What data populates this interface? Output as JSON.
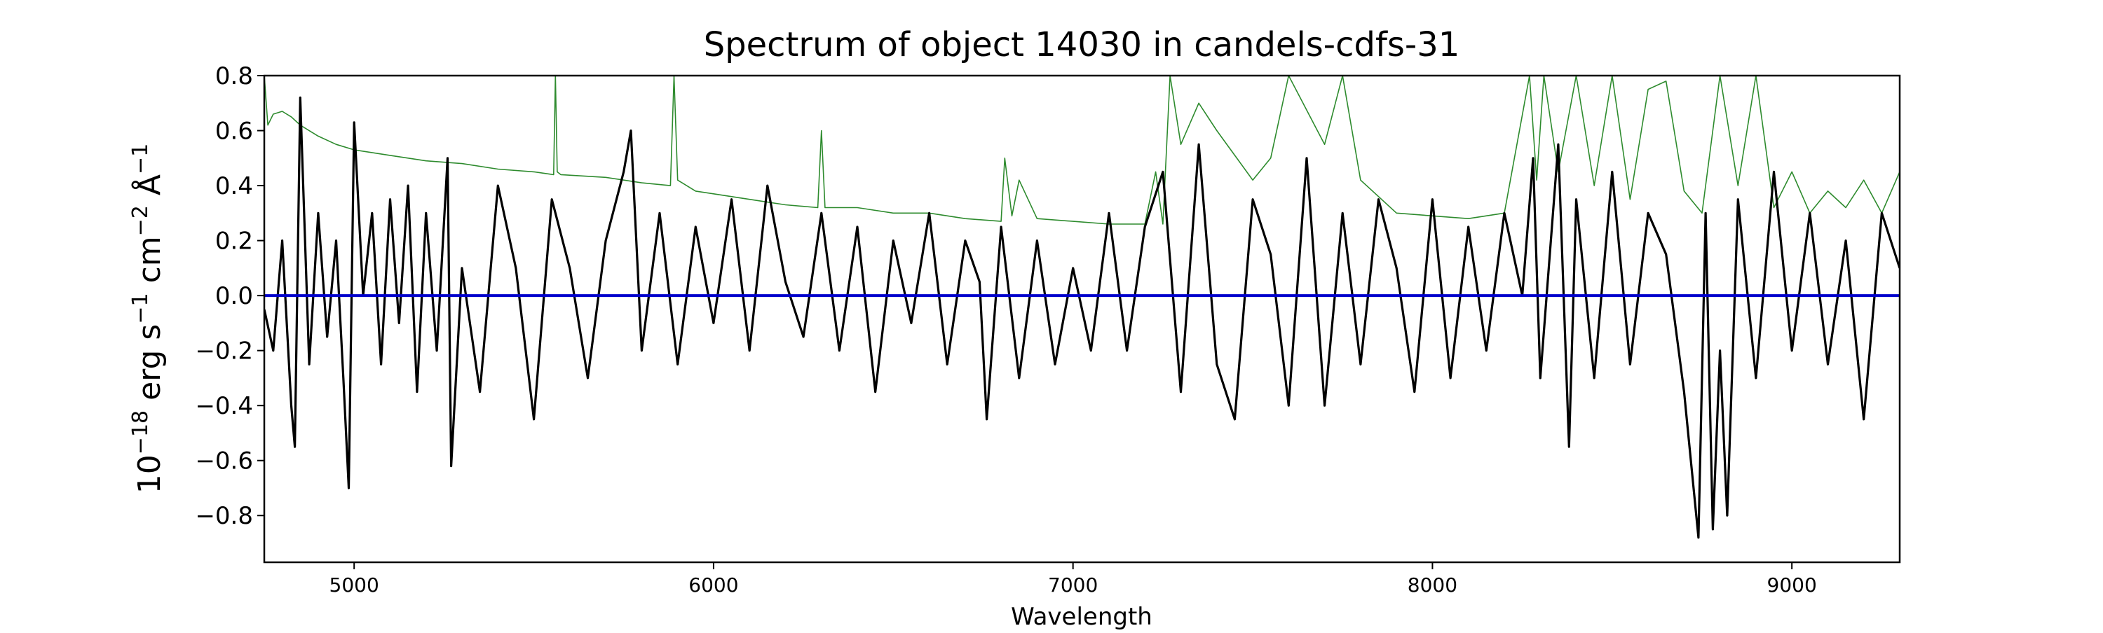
{
  "chart_data": {
    "type": "line",
    "title": "Spectrum of object 14030 in candels-cdfs-31",
    "xlabel": "Wavelength",
    "ylabel": {
      "base": "10",
      "exp1": "−18",
      "unit1": " erg s",
      "exp2": "−1",
      "unit2": " cm",
      "exp3": "−2",
      "unit3": " Å",
      "exp4": "−1"
    },
    "xlim": [
      4750,
      9300
    ],
    "ylim": [
      -0.97,
      0.8
    ],
    "xticks": [
      5000,
      6000,
      7000,
      8000,
      9000
    ],
    "xtick_labels": [
      "5000",
      "6000",
      "7000",
      "8000",
      "9000"
    ],
    "yticks": [
      0.8,
      0.6,
      0.4,
      0.2,
      0.0,
      -0.2,
      -0.4,
      -0.6,
      -0.8
    ],
    "ytick_labels": [
      "0.8",
      "0.6",
      "0.4",
      "0.2",
      "0.0",
      "−0.2",
      "−0.4",
      "−0.6",
      "−0.8"
    ],
    "grid": false,
    "colors": {
      "flux": "#000000",
      "error": "#2e8b2e",
      "zero": "#0000cc",
      "axes": "#000000"
    },
    "series": [
      {
        "key": "flux",
        "x": [
          4750,
          4775,
          4800,
          4825,
          4835,
          4850,
          4875,
          4900,
          4925,
          4950,
          4970,
          4985,
          5000,
          5025,
          5050,
          5075,
          5100,
          5125,
          5150,
          5175,
          5200,
          5230,
          5260,
          5270,
          5300,
          5350,
          5400,
          5450,
          5500,
          5550,
          5600,
          5650,
          5700,
          5750,
          5770,
          5800,
          5850,
          5900,
          5950,
          6000,
          6050,
          6100,
          6150,
          6200,
          6250,
          6300,
          6350,
          6400,
          6450,
          6500,
          6550,
          6600,
          6650,
          6700,
          6740,
          6760,
          6800,
          6850,
          6900,
          6950,
          7000,
          7050,
          7100,
          7150,
          7200,
          7250,
          7300,
          7350,
          7400,
          7450,
          7500,
          7550,
          7600,
          7650,
          7700,
          7750,
          7800,
          7850,
          7900,
          7950,
          8000,
          8050,
          8100,
          8150,
          8200,
          8250,
          8280,
          8300,
          8350,
          8380,
          8400,
          8450,
          8500,
          8550,
          8600,
          8650,
          8700,
          8740,
          8760,
          8780,
          8800,
          8820,
          8850,
          8900,
          8950,
          9000,
          9050,
          9100,
          9150,
          9200,
          9250,
          9300
        ],
        "y": [
          -0.05,
          -0.2,
          0.2,
          -0.4,
          -0.55,
          0.72,
          -0.25,
          0.3,
          -0.15,
          0.2,
          -0.3,
          -0.7,
          0.63,
          0.0,
          0.3,
          -0.25,
          0.35,
          -0.1,
          0.4,
          -0.35,
          0.3,
          -0.2,
          0.5,
          -0.62,
          0.1,
          -0.35,
          0.4,
          0.1,
          -0.45,
          0.35,
          0.1,
          -0.3,
          0.2,
          0.45,
          0.6,
          -0.2,
          0.3,
          -0.25,
          0.25,
          -0.1,
          0.35,
          -0.2,
          0.4,
          0.05,
          -0.15,
          0.3,
          -0.2,
          0.25,
          -0.35,
          0.2,
          -0.1,
          0.3,
          -0.25,
          0.2,
          0.05,
          -0.45,
          0.25,
          -0.3,
          0.2,
          -0.25,
          0.1,
          -0.2,
          0.3,
          -0.2,
          0.25,
          0.45,
          -0.35,
          0.55,
          -0.25,
          -0.45,
          0.35,
          0.15,
          -0.4,
          0.5,
          -0.4,
          0.3,
          -0.25,
          0.35,
          0.1,
          -0.35,
          0.35,
          -0.3,
          0.25,
          -0.2,
          0.3,
          0.0,
          0.5,
          -0.3,
          0.55,
          -0.55,
          0.35,
          -0.3,
          0.45,
          -0.25,
          0.3,
          0.15,
          -0.35,
          -0.88,
          0.3,
          -0.85,
          -0.2,
          -0.8,
          0.35,
          -0.3,
          0.45,
          -0.2,
          0.3,
          -0.25,
          0.2,
          -0.45,
          0.3,
          0.1
        ]
      },
      {
        "key": "error",
        "x": [
          4750,
          4760,
          4775,
          4800,
          4825,
          4850,
          4900,
          4950,
          5000,
          5100,
          5200,
          5300,
          5400,
          5500,
          5555,
          5560,
          5565,
          5575,
          5700,
          5800,
          5880,
          5890,
          5900,
          5950,
          6000,
          6100,
          6200,
          6290,
          6300,
          6310,
          6400,
          6500,
          6600,
          6700,
          6800,
          6810,
          6830,
          6850,
          6900,
          7000,
          7100,
          7200,
          7230,
          7250,
          7270,
          7300,
          7350,
          7400,
          7500,
          7550,
          7600,
          7700,
          7750,
          7800,
          7900,
          8000,
          8100,
          8200,
          8270,
          8290,
          8310,
          8350,
          8400,
          8450,
          8500,
          8550,
          8600,
          8650,
          8700,
          8750,
          8800,
          8850,
          8900,
          8950,
          9000,
          9050,
          9100,
          9150,
          9200,
          9250,
          9300
        ],
        "y": [
          0.8,
          0.62,
          0.66,
          0.67,
          0.65,
          0.62,
          0.58,
          0.55,
          0.53,
          0.51,
          0.49,
          0.48,
          0.46,
          0.45,
          0.44,
          0.8,
          0.45,
          0.44,
          0.43,
          0.41,
          0.4,
          0.8,
          0.42,
          0.38,
          0.37,
          0.35,
          0.33,
          0.32,
          0.6,
          0.32,
          0.32,
          0.3,
          0.3,
          0.28,
          0.27,
          0.5,
          0.29,
          0.42,
          0.28,
          0.27,
          0.26,
          0.26,
          0.45,
          0.26,
          0.8,
          0.55,
          0.7,
          0.6,
          0.42,
          0.5,
          0.8,
          0.55,
          0.8,
          0.42,
          0.3,
          0.29,
          0.28,
          0.3,
          0.8,
          0.42,
          0.8,
          0.45,
          0.8,
          0.4,
          0.8,
          0.35,
          0.75,
          0.78,
          0.38,
          0.3,
          0.8,
          0.4,
          0.8,
          0.32,
          0.45,
          0.3,
          0.38,
          0.32,
          0.42,
          0.3,
          0.45
        ]
      },
      {
        "key": "zero",
        "x": [
          4750,
          9300
        ],
        "y": [
          0.0,
          0.0
        ]
      }
    ]
  }
}
